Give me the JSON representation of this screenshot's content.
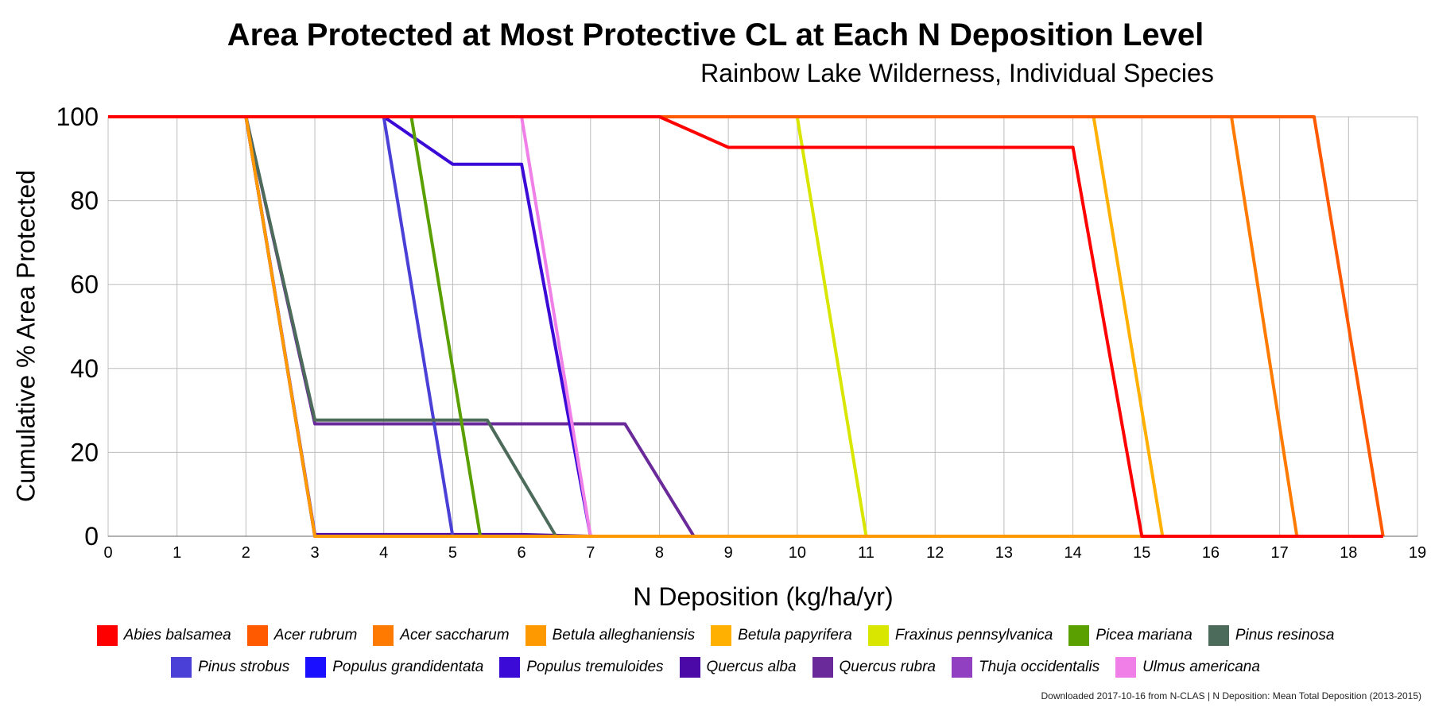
{
  "chart_data": {
    "type": "line",
    "title": "Area Protected at Most Protective CL at Each N Deposition Level",
    "subtitle": "Rainbow Lake Wilderness, Individual Species",
    "xlabel": "N Deposition (kg/ha/yr)",
    "ylabel": "Cumulative % Area Protected",
    "xlim": [
      0,
      19
    ],
    "ylim": [
      0,
      100
    ],
    "x_ticks": [
      0,
      1,
      2,
      3,
      4,
      5,
      6,
      7,
      8,
      9,
      10,
      11,
      12,
      13,
      14,
      15,
      16,
      17,
      18,
      19
    ],
    "y_ticks": [
      0,
      20,
      40,
      60,
      80,
      100
    ],
    "grid": true,
    "legend_position": "bottom",
    "series": [
      {
        "name": "Abies balsamea",
        "color": "#ff0000",
        "points": [
          [
            0,
            100
          ],
          [
            8,
            100
          ],
          [
            9,
            92.7
          ],
          [
            14,
            92.7
          ],
          [
            15,
            0
          ],
          [
            18.5,
            0
          ]
        ]
      },
      {
        "name": "Acer rubrum",
        "color": "#ff5a00",
        "points": [
          [
            0,
            100
          ],
          [
            17.5,
            100
          ],
          [
            18.5,
            0
          ]
        ]
      },
      {
        "name": "Acer saccharum",
        "color": "#ff7a00",
        "points": [
          [
            0,
            100
          ],
          [
            16.3,
            100
          ],
          [
            17.25,
            0
          ],
          [
            18.5,
            0
          ]
        ]
      },
      {
        "name": "Betula alleghaniensis",
        "color": "#ff9900",
        "points": [
          [
            0,
            100
          ],
          [
            2,
            100
          ],
          [
            3,
            0
          ],
          [
            18.5,
            0
          ]
        ]
      },
      {
        "name": "Betula papyrifera",
        "color": "#ffb000",
        "points": [
          [
            0,
            100
          ],
          [
            14.3,
            100
          ],
          [
            15.3,
            0
          ],
          [
            18.5,
            0
          ]
        ]
      },
      {
        "name": "Fraxinus pennsylvanica",
        "color": "#d8e600",
        "points": [
          [
            0,
            100
          ],
          [
            10,
            100
          ],
          [
            11,
            0
          ],
          [
            18.5,
            0
          ]
        ]
      },
      {
        "name": "Picea mariana",
        "color": "#5aa000",
        "points": [
          [
            0,
            100
          ],
          [
            4.4,
            100
          ],
          [
            5.4,
            0
          ],
          [
            18.5,
            0
          ]
        ]
      },
      {
        "name": "Pinus resinosa",
        "color": "#4d6b5a",
        "points": [
          [
            0,
            100
          ],
          [
            2,
            100
          ],
          [
            3,
            27.7
          ],
          [
            5.5,
            27.7
          ],
          [
            6.5,
            0
          ],
          [
            18.5,
            0
          ]
        ]
      },
      {
        "name": "Pinus strobus",
        "color": "#4a3fd6",
        "points": [
          [
            0,
            100
          ],
          [
            4,
            100
          ],
          [
            5,
            0
          ],
          [
            18.5,
            0
          ]
        ]
      },
      {
        "name": "Populus grandidentata",
        "color": "#1a10ff",
        "points": [
          [
            0,
            100
          ],
          [
            2,
            100
          ],
          [
            3,
            0
          ],
          [
            18.5,
            0
          ]
        ]
      },
      {
        "name": "Populus tremuloides",
        "color": "#3c0ad6",
        "points": [
          [
            0,
            100
          ],
          [
            4,
            100
          ],
          [
            5,
            88.7
          ],
          [
            6,
            88.7
          ],
          [
            7,
            0
          ],
          [
            18.5,
            0
          ]
        ]
      },
      {
        "name": "Quercus alba",
        "color": "#4b0aa8",
        "points": [
          [
            0,
            100
          ],
          [
            2,
            100
          ],
          [
            3,
            0.4
          ],
          [
            6,
            0.4
          ],
          [
            7,
            0
          ],
          [
            18.5,
            0
          ]
        ]
      },
      {
        "name": "Quercus rubra",
        "color": "#6a2a9a",
        "points": [
          [
            0,
            100
          ],
          [
            2,
            100
          ],
          [
            3,
            26.8
          ],
          [
            7.5,
            26.8
          ],
          [
            8.5,
            0
          ],
          [
            18.5,
            0
          ]
        ]
      },
      {
        "name": "Thuja occidentalis",
        "color": "#9040c0",
        "points": [
          [
            0,
            100
          ],
          [
            2,
            100
          ],
          [
            3,
            0
          ],
          [
            18.5,
            0
          ]
        ]
      },
      {
        "name": "Ulmus americana",
        "color": "#f080e8",
        "points": [
          [
            0,
            100
          ],
          [
            6,
            100
          ],
          [
            7,
            0
          ],
          [
            18.5,
            0
          ]
        ]
      }
    ],
    "draw_order": [
      12,
      11,
      10,
      9,
      8,
      7,
      13,
      14,
      6,
      5,
      4,
      3,
      2,
      1,
      0
    ]
  },
  "legend": {
    "row1": [
      {
        "label": "Abies balsamea",
        "color": "#ff0000"
      },
      {
        "label": "Acer rubrum",
        "color": "#ff5a00"
      },
      {
        "label": "Acer saccharum",
        "color": "#ff7a00"
      },
      {
        "label": "Betula alleghaniensis",
        "color": "#ff9900"
      },
      {
        "label": "Betula papyrifera",
        "color": "#ffb000"
      },
      {
        "label": "Fraxinus pennsylvanica",
        "color": "#d8e600"
      },
      {
        "label": "Picea mariana",
        "color": "#5aa000"
      },
      {
        "label": "Pinus resinosa",
        "color": "#4d6b5a"
      }
    ],
    "row2": [
      {
        "label": "Pinus strobus",
        "color": "#4a3fd6"
      },
      {
        "label": "Populus grandidentata",
        "color": "#1a10ff"
      },
      {
        "label": "Populus tremuloides",
        "color": "#3c0ad6"
      },
      {
        "label": "Quercus alba",
        "color": "#4b0aa8"
      },
      {
        "label": "Quercus rubra",
        "color": "#6a2a9a"
      },
      {
        "label": "Thuja occidentalis",
        "color": "#9040c0"
      },
      {
        "label": "Ulmus americana",
        "color": "#f080e8"
      }
    ]
  },
  "footer": "Downloaded 2017-10-16 from N-CLAS    |    N Deposition: Mean Total Deposition (2013-2015)"
}
